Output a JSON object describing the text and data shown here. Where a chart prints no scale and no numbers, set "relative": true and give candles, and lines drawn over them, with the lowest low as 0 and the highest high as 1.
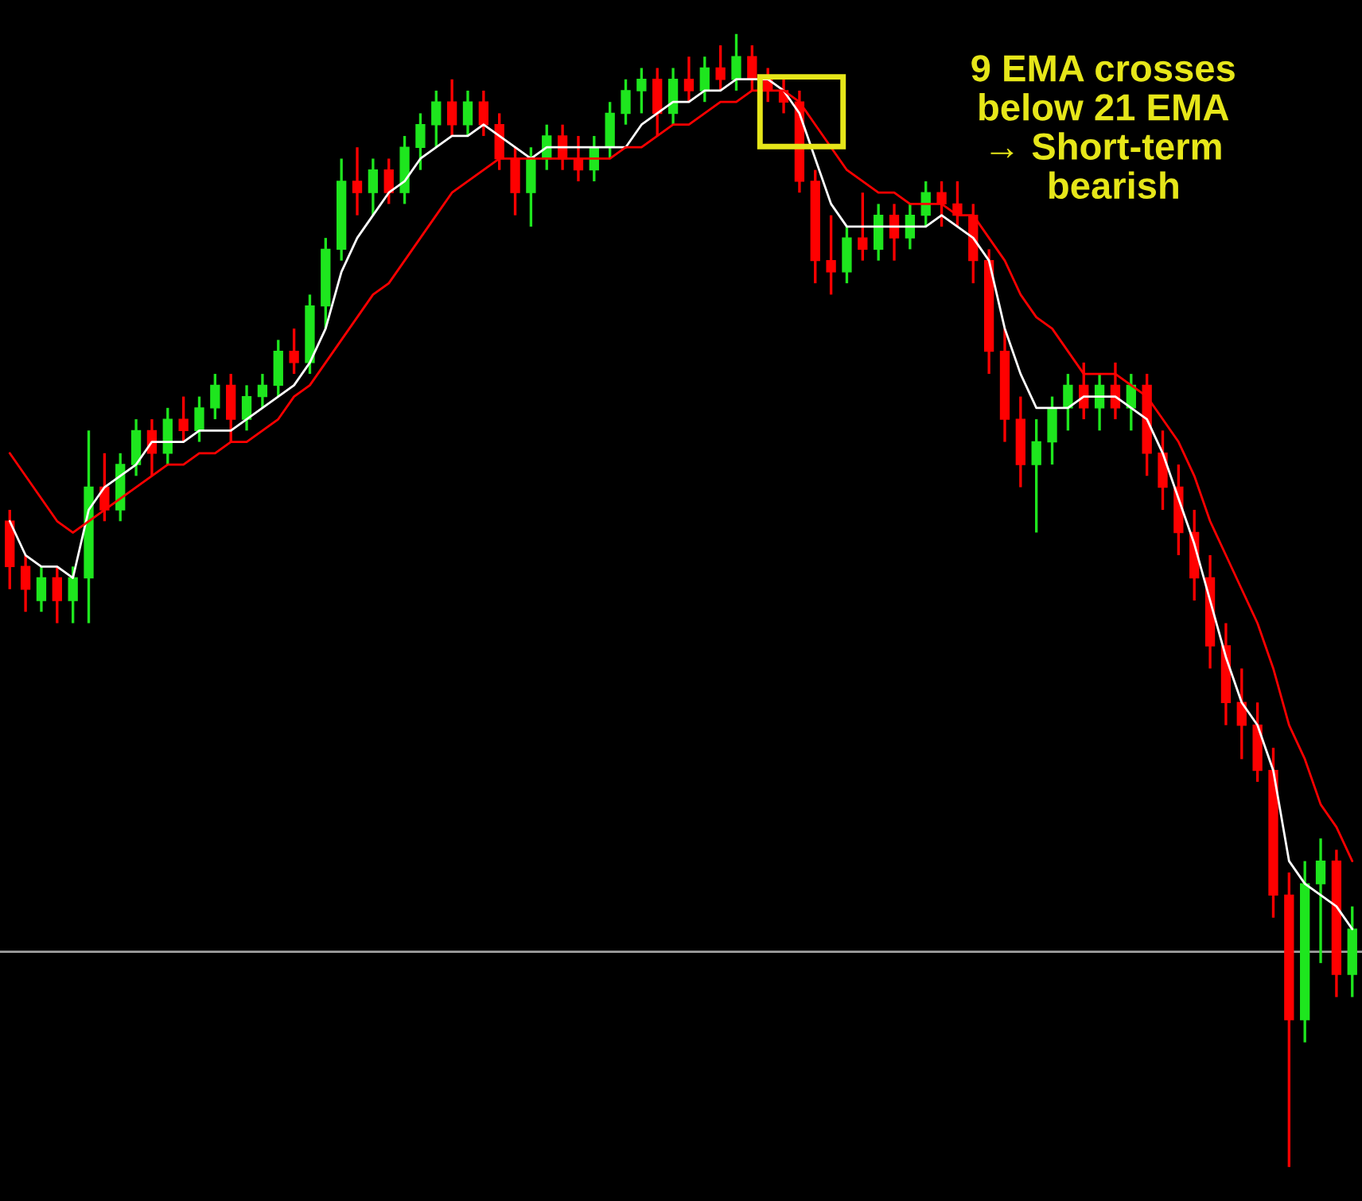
{
  "chart_data": {
    "type": "candlestick",
    "relative": true,
    "categories": [
      null,
      null,
      null,
      null,
      null,
      null,
      null,
      null,
      null,
      null,
      null,
      null,
      null,
      null,
      null,
      null,
      null,
      null,
      null,
      null,
      null,
      null,
      null,
      null,
      null,
      null,
      null,
      null,
      null,
      null,
      null,
      null,
      null,
      null,
      null,
      null,
      null,
      null,
      null,
      null,
      null,
      null,
      null,
      null,
      null,
      null,
      null,
      null,
      null,
      null,
      null,
      null,
      null,
      null,
      null,
      null,
      null,
      null,
      null,
      null,
      null,
      null,
      null,
      null,
      null,
      null,
      null,
      null,
      null,
      null,
      null,
      null,
      null,
      null,
      null,
      null,
      null,
      null,
      null,
      null,
      null,
      null,
      null,
      null,
      null,
      null
    ],
    "ohlc": [
      [
        0.57,
        0.58,
        0.51,
        0.53
      ],
      [
        0.53,
        0.54,
        0.49,
        0.51
      ],
      [
        0.5,
        0.53,
        0.49,
        0.52
      ],
      [
        0.52,
        0.53,
        0.48,
        0.5
      ],
      [
        0.5,
        0.53,
        0.48,
        0.52
      ],
      [
        0.52,
        0.65,
        0.48,
        0.6
      ],
      [
        0.6,
        0.63,
        0.57,
        0.58
      ],
      [
        0.58,
        0.63,
        0.57,
        0.62
      ],
      [
        0.62,
        0.66,
        0.61,
        0.65
      ],
      [
        0.65,
        0.66,
        0.61,
        0.63
      ],
      [
        0.63,
        0.67,
        0.62,
        0.66
      ],
      [
        0.66,
        0.68,
        0.64,
        0.65
      ],
      [
        0.65,
        0.68,
        0.64,
        0.67
      ],
      [
        0.67,
        0.7,
        0.66,
        0.69
      ],
      [
        0.69,
        0.7,
        0.64,
        0.66
      ],
      [
        0.66,
        0.69,
        0.65,
        0.68
      ],
      [
        0.68,
        0.7,
        0.67,
        0.69
      ],
      [
        0.69,
        0.73,
        0.68,
        0.72
      ],
      [
        0.72,
        0.74,
        0.7,
        0.71
      ],
      [
        0.71,
        0.77,
        0.7,
        0.76
      ],
      [
        0.76,
        0.82,
        0.74,
        0.81
      ],
      [
        0.81,
        0.89,
        0.8,
        0.87
      ],
      [
        0.87,
        0.9,
        0.84,
        0.86
      ],
      [
        0.86,
        0.89,
        0.84,
        0.88
      ],
      [
        0.88,
        0.89,
        0.85,
        0.86
      ],
      [
        0.86,
        0.91,
        0.85,
        0.9
      ],
      [
        0.9,
        0.93,
        0.88,
        0.92
      ],
      [
        0.92,
        0.95,
        0.9,
        0.94
      ],
      [
        0.94,
        0.96,
        0.91,
        0.92
      ],
      [
        0.92,
        0.95,
        0.91,
        0.94
      ],
      [
        0.94,
        0.95,
        0.91,
        0.92
      ],
      [
        0.92,
        0.93,
        0.88,
        0.89
      ],
      [
        0.89,
        0.9,
        0.84,
        0.86
      ],
      [
        0.86,
        0.9,
        0.83,
        0.89
      ],
      [
        0.89,
        0.92,
        0.88,
        0.91
      ],
      [
        0.91,
        0.92,
        0.88,
        0.89
      ],
      [
        0.89,
        0.91,
        0.87,
        0.88
      ],
      [
        0.88,
        0.91,
        0.87,
        0.9
      ],
      [
        0.9,
        0.94,
        0.89,
        0.93
      ],
      [
        0.93,
        0.96,
        0.92,
        0.95
      ],
      [
        0.95,
        0.97,
        0.93,
        0.96
      ],
      [
        0.96,
        0.97,
        0.91,
        0.93
      ],
      [
        0.93,
        0.97,
        0.92,
        0.96
      ],
      [
        0.96,
        0.98,
        0.94,
        0.95
      ],
      [
        0.95,
        0.98,
        0.94,
        0.97
      ],
      [
        0.97,
        0.99,
        0.95,
        0.96
      ],
      [
        0.96,
        1.0,
        0.95,
        0.98
      ],
      [
        0.98,
        0.99,
        0.95,
        0.96
      ],
      [
        0.96,
        0.97,
        0.94,
        0.95
      ],
      [
        0.95,
        0.96,
        0.93,
        0.94
      ],
      [
        0.94,
        0.95,
        0.86,
        0.87
      ],
      [
        0.87,
        0.88,
        0.78,
        0.8
      ],
      [
        0.8,
        0.84,
        0.77,
        0.79
      ],
      [
        0.79,
        0.83,
        0.78,
        0.82
      ],
      [
        0.82,
        0.86,
        0.8,
        0.81
      ],
      [
        0.81,
        0.85,
        0.8,
        0.84
      ],
      [
        0.84,
        0.85,
        0.8,
        0.82
      ],
      [
        0.82,
        0.85,
        0.81,
        0.84
      ],
      [
        0.84,
        0.87,
        0.83,
        0.86
      ],
      [
        0.86,
        0.87,
        0.83,
        0.85
      ],
      [
        0.85,
        0.87,
        0.83,
        0.84
      ],
      [
        0.84,
        0.85,
        0.78,
        0.8
      ],
      [
        0.8,
        0.81,
        0.7,
        0.72
      ],
      [
        0.72,
        0.74,
        0.64,
        0.66
      ],
      [
        0.66,
        0.68,
        0.6,
        0.62
      ],
      [
        0.62,
        0.66,
        0.56,
        0.64
      ],
      [
        0.64,
        0.68,
        0.62,
        0.67
      ],
      [
        0.67,
        0.7,
        0.65,
        0.69
      ],
      [
        0.69,
        0.71,
        0.66,
        0.67
      ],
      [
        0.67,
        0.7,
        0.65,
        0.69
      ],
      [
        0.69,
        0.71,
        0.66,
        0.67
      ],
      [
        0.67,
        0.7,
        0.65,
        0.69
      ],
      [
        0.69,
        0.7,
        0.61,
        0.63
      ],
      [
        0.63,
        0.65,
        0.58,
        0.6
      ],
      [
        0.6,
        0.62,
        0.54,
        0.56
      ],
      [
        0.56,
        0.58,
        0.5,
        0.52
      ],
      [
        0.52,
        0.54,
        0.44,
        0.46
      ],
      [
        0.46,
        0.48,
        0.39,
        0.41
      ],
      [
        0.41,
        0.44,
        0.36,
        0.39
      ],
      [
        0.39,
        0.41,
        0.34,
        0.35
      ],
      [
        0.35,
        0.37,
        0.22,
        0.24
      ],
      [
        0.24,
        0.26,
        0.0,
        0.13
      ],
      [
        0.13,
        0.27,
        0.11,
        0.25
      ],
      [
        0.25,
        0.29,
        0.18,
        0.27
      ],
      [
        0.27,
        0.28,
        0.15,
        0.17
      ],
      [
        0.17,
        0.23,
        0.15,
        0.21
      ]
    ],
    "colors": [
      "#ff0000",
      "#ff0000",
      "#1ee61e",
      "#ff0000",
      "#1ee61e",
      "#1ee61e",
      "#ff0000",
      "#1ee61e",
      "#1ee61e",
      "#ff0000",
      "#1ee61e",
      "#ff0000",
      "#1ee61e",
      "#1ee61e",
      "#ff0000",
      "#1ee61e",
      "#1ee61e",
      "#1ee61e",
      "#ff0000",
      "#1ee61e",
      "#1ee61e",
      "#1ee61e",
      "#ff0000",
      "#1ee61e",
      "#ff0000",
      "#1ee61e",
      "#1ee61e",
      "#1ee61e",
      "#ff0000",
      "#1ee61e",
      "#ff0000",
      "#ff0000",
      "#ff0000",
      "#1ee61e",
      "#1ee61e",
      "#ff0000",
      "#ff0000",
      "#1ee61e",
      "#1ee61e",
      "#1ee61e",
      "#1ee61e",
      "#ff0000",
      "#1ee61e",
      "#ff0000",
      "#1ee61e",
      "#ff0000",
      "#1ee61e",
      "#ff0000",
      "#ff0000",
      "#ff0000",
      "#ff0000",
      "#ff0000",
      "#ff0000",
      "#1ee61e",
      "#ff0000",
      "#1ee61e",
      "#ff0000",
      "#1ee61e",
      "#1ee61e",
      "#ff0000",
      "#ff0000",
      "#ff0000",
      "#ff0000",
      "#ff0000",
      "#ff0000",
      "#1ee61e",
      "#1ee61e",
      "#1ee61e",
      "#ff0000",
      "#1ee61e",
      "#ff0000",
      "#1ee61e",
      "#ff0000",
      "#ff0000",
      "#ff0000",
      "#ff0000",
      "#ff0000",
      "#ff0000",
      "#ff0000",
      "#ff0000",
      "#ff0000",
      "#ff0000",
      "#1ee61e",
      "#1ee61e",
      "#ff0000",
      "#1ee61e"
    ],
    "series": [
      {
        "type": "line",
        "color": "#ffffff",
        "values": [
          0.57,
          0.54,
          0.53,
          0.53,
          0.52,
          0.58,
          0.6,
          0.61,
          0.62,
          0.64,
          0.64,
          0.64,
          0.65,
          0.65,
          0.65,
          0.66,
          0.67,
          0.68,
          0.69,
          0.71,
          0.74,
          0.79,
          0.82,
          0.84,
          0.86,
          0.87,
          0.89,
          0.9,
          0.91,
          0.91,
          0.92,
          0.91,
          0.9,
          0.89,
          0.9,
          0.9,
          0.9,
          0.9,
          0.9,
          0.9,
          0.92,
          0.93,
          0.94,
          0.94,
          0.95,
          0.95,
          0.96,
          0.96,
          0.96,
          0.95,
          0.93,
          0.89,
          0.85,
          0.83,
          0.83,
          0.83,
          0.83,
          0.83,
          0.83,
          0.84,
          0.83,
          0.82,
          0.8,
          0.74,
          0.7,
          0.67,
          0.67,
          0.67,
          0.68,
          0.68,
          0.68,
          0.67,
          0.66,
          0.63,
          0.59,
          0.55,
          0.5,
          0.45,
          0.41,
          0.39,
          0.35,
          0.27,
          0.25,
          0.24,
          0.23,
          0.21
        ]
      },
      {
        "type": "line",
        "color": "#ff0000",
        "values": [
          0.63,
          0.61,
          0.59,
          0.57,
          0.56,
          0.57,
          0.58,
          0.59,
          0.6,
          0.61,
          0.62,
          0.62,
          0.63,
          0.63,
          0.64,
          0.64,
          0.65,
          0.66,
          0.68,
          0.69,
          0.71,
          0.73,
          0.75,
          0.77,
          0.78,
          0.8,
          0.82,
          0.84,
          0.86,
          0.87,
          0.88,
          0.89,
          0.89,
          0.89,
          0.89,
          0.89,
          0.89,
          0.89,
          0.89,
          0.9,
          0.9,
          0.91,
          0.92,
          0.92,
          0.93,
          0.94,
          0.94,
          0.95,
          0.95,
          0.95,
          0.94,
          0.92,
          0.9,
          0.88,
          0.87,
          0.86,
          0.86,
          0.85,
          0.85,
          0.85,
          0.84,
          0.84,
          0.82,
          0.8,
          0.77,
          0.75,
          0.74,
          0.72,
          0.7,
          0.7,
          0.7,
          0.69,
          0.68,
          0.66,
          0.64,
          0.61,
          0.57,
          0.54,
          0.51,
          0.48,
          0.44,
          0.39,
          0.36,
          0.32,
          0.3,
          0.27
        ]
      }
    ],
    "ref_lines": [
      {
        "axis": "y",
        "value": 0.19,
        "color": "#a0a0a0"
      }
    ],
    "annotations": [
      "9 EMA crosses\nbelow 21 EMA\n→ Short-term\n  bearish"
    ]
  }
}
